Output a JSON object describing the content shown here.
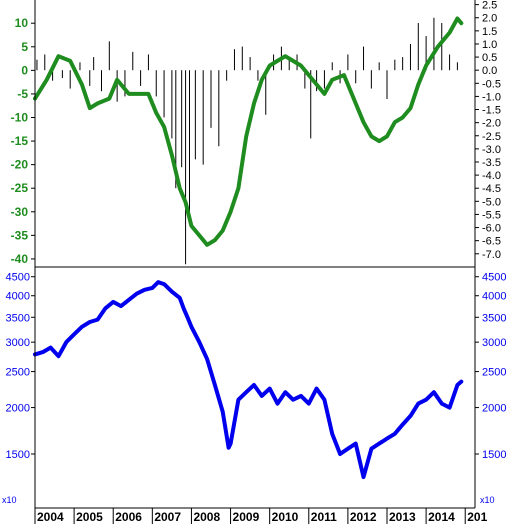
{
  "chart_data": [
    {
      "type": "line+bar",
      "panel": "top",
      "left_axis": {
        "ylim": [
          -41.5,
          14.5
        ],
        "ticks": [
          10,
          5,
          0,
          -5,
          -10,
          -15,
          -20,
          -25,
          -30,
          -35,
          -40
        ],
        "color": "#1e8c1e"
      },
      "right_axis": {
        "ylim": [
          -7.466,
          2.6
        ],
        "ticks": [
          "2.5",
          "2.0",
          "1.5",
          "1.0",
          "0.5",
          "0.0",
          "-0.5",
          "-1.0",
          "-1.5",
          "-2.0",
          "-2.5",
          "-3.0",
          "-3.5",
          "-4.0",
          "-4.5",
          "-5.0",
          "-5.5",
          "-6.0",
          "-6.5",
          "-7.0"
        ]
      },
      "line_series": {
        "color": "#1e8c1e",
        "x": [
          2004.0,
          2004.3,
          2004.6,
          2004.9,
          2005.2,
          2005.4,
          2005.6,
          2005.9,
          2006.1,
          2006.4,
          2006.7,
          2006.9,
          2007.1,
          2007.3,
          2007.5,
          2007.7,
          2007.85,
          2008.0,
          2008.2,
          2008.4,
          2008.6,
          2008.8,
          2009.0,
          2009.2,
          2009.4,
          2009.6,
          2009.8,
          2010.0,
          2010.2,
          2010.4,
          2010.6,
          2010.8,
          2011.0,
          2011.2,
          2011.4,
          2011.6,
          2011.9,
          2012.2,
          2012.4,
          2012.6,
          2012.8,
          2013.0,
          2013.2,
          2013.4,
          2013.6,
          2013.8,
          2014.0,
          2014.3,
          2014.6,
          2014.8,
          2014.9
        ],
        "y": [
          -6,
          -2,
          3,
          2,
          -3,
          -8,
          -7,
          -6,
          -2,
          -5,
          -5,
          -5,
          -9,
          -12,
          -18,
          -25,
          -28,
          -33,
          -35,
          -37,
          -36,
          -34,
          -30,
          -25,
          -14,
          -7,
          -2,
          1,
          2,
          3,
          2,
          1,
          -1,
          -3,
          -5,
          -2,
          -1,
          -7,
          -11,
          -14,
          -15,
          -14,
          -11,
          -10,
          -8,
          -3,
          1,
          5,
          8,
          11,
          10
        ]
      },
      "bar_series": {
        "unit": "right_axis",
        "x": [
          2004.05,
          2004.25,
          2004.45,
          2004.7,
          2004.9,
          2005.15,
          2005.4,
          2005.5,
          2005.7,
          2005.9,
          2006.1,
          2006.3,
          2006.5,
          2006.7,
          2006.9,
          2007.1,
          2007.3,
          2007.5,
          2007.6,
          2007.75,
          2007.85,
          2007.95,
          2008.1,
          2008.3,
          2008.5,
          2008.7,
          2008.9,
          2009.1,
          2009.3,
          2009.5,
          2009.7,
          2009.9,
          2010.1,
          2010.3,
          2010.5,
          2010.7,
          2010.9,
          2011.05,
          2011.2,
          2011.4,
          2011.6,
          2011.8,
          2012.0,
          2012.2,
          2012.4,
          2012.6,
          2012.8,
          2013.0,
          2013.2,
          2013.4,
          2013.6,
          2013.8,
          2014.0,
          2014.2,
          2014.4,
          2014.6,
          2014.8
        ],
        "values": [
          0.4,
          0.6,
          -0.4,
          -0.3,
          -0.7,
          0.3,
          -0.6,
          0.5,
          -0.8,
          1.1,
          -1.2,
          -1.0,
          0.7,
          -0.6,
          0.6,
          -1.0,
          -1.8,
          -2.6,
          -4.5,
          -3.7,
          -7.4,
          -5.5,
          -3.4,
          -3.6,
          -2.2,
          -2.9,
          -0.4,
          0.8,
          0.9,
          0.5,
          -0.4,
          -1.7,
          0.6,
          0.9,
          0.4,
          0.6,
          -0.7,
          -2.6,
          -0.8,
          -0.7,
          0.3,
          -0.5,
          0.6,
          -0.5,
          0.9,
          -0.7,
          0.3,
          -1.1,
          0.4,
          0.5,
          1.0,
          1.8,
          1.3,
          2.0,
          1.8,
          0.6,
          0.3
        ]
      }
    },
    {
      "type": "line",
      "panel": "bottom",
      "log_scale": true,
      "ylim": [
        1080,
        4750
      ],
      "ticks": [
        4500,
        4000,
        3500,
        3000,
        2500,
        2000,
        1500
      ],
      "unit_label": "x10",
      "series": {
        "color": "#0000ee",
        "x": [
          2004.0,
          2004.2,
          2004.4,
          2004.6,
          2004.8,
          2005.0,
          2005.2,
          2005.4,
          2005.6,
          2005.8,
          2006.0,
          2006.2,
          2006.4,
          2006.6,
          2006.8,
          2007.0,
          2007.15,
          2007.3,
          2007.5,
          2007.7,
          2007.8,
          2007.9,
          2008.0,
          2008.2,
          2008.4,
          2008.6,
          2008.8,
          2008.95,
          2009.0,
          2009.2,
          2009.4,
          2009.6,
          2009.8,
          2010.0,
          2010.2,
          2010.4,
          2010.6,
          2010.8,
          2011.0,
          2011.2,
          2011.4,
          2011.6,
          2011.8,
          2012.0,
          2012.2,
          2012.4,
          2012.6,
          2012.8,
          2013.0,
          2013.2,
          2013.4,
          2013.6,
          2013.8,
          2014.0,
          2014.2,
          2014.4,
          2014.6,
          2014.8,
          2014.9
        ],
        "y": [
          2780,
          2820,
          2900,
          2750,
          3000,
          3150,
          3300,
          3400,
          3450,
          3700,
          3850,
          3750,
          3900,
          4050,
          4150,
          4200,
          4350,
          4300,
          4100,
          3950,
          3700,
          3500,
          3300,
          3000,
          2700,
          2300,
          1950,
          1560,
          1600,
          2100,
          2200,
          2300,
          2150,
          2250,
          2050,
          2200,
          2100,
          2150,
          2050,
          2250,
          2100,
          1700,
          1500,
          1550,
          1600,
          1300,
          1550,
          1600,
          1650,
          1700,
          1800,
          1900,
          2050,
          2100,
          2200,
          2050,
          2000,
          2300,
          2350
        ]
      }
    }
  ],
  "x_axis": {
    "xlim": [
      2004.0,
      2015.25
    ],
    "ticks": [
      "2004",
      "2005",
      "2006",
      "2007",
      "2008",
      "2009",
      "2010",
      "2011",
      "2012",
      "2013",
      "2014",
      "201"
    ]
  }
}
